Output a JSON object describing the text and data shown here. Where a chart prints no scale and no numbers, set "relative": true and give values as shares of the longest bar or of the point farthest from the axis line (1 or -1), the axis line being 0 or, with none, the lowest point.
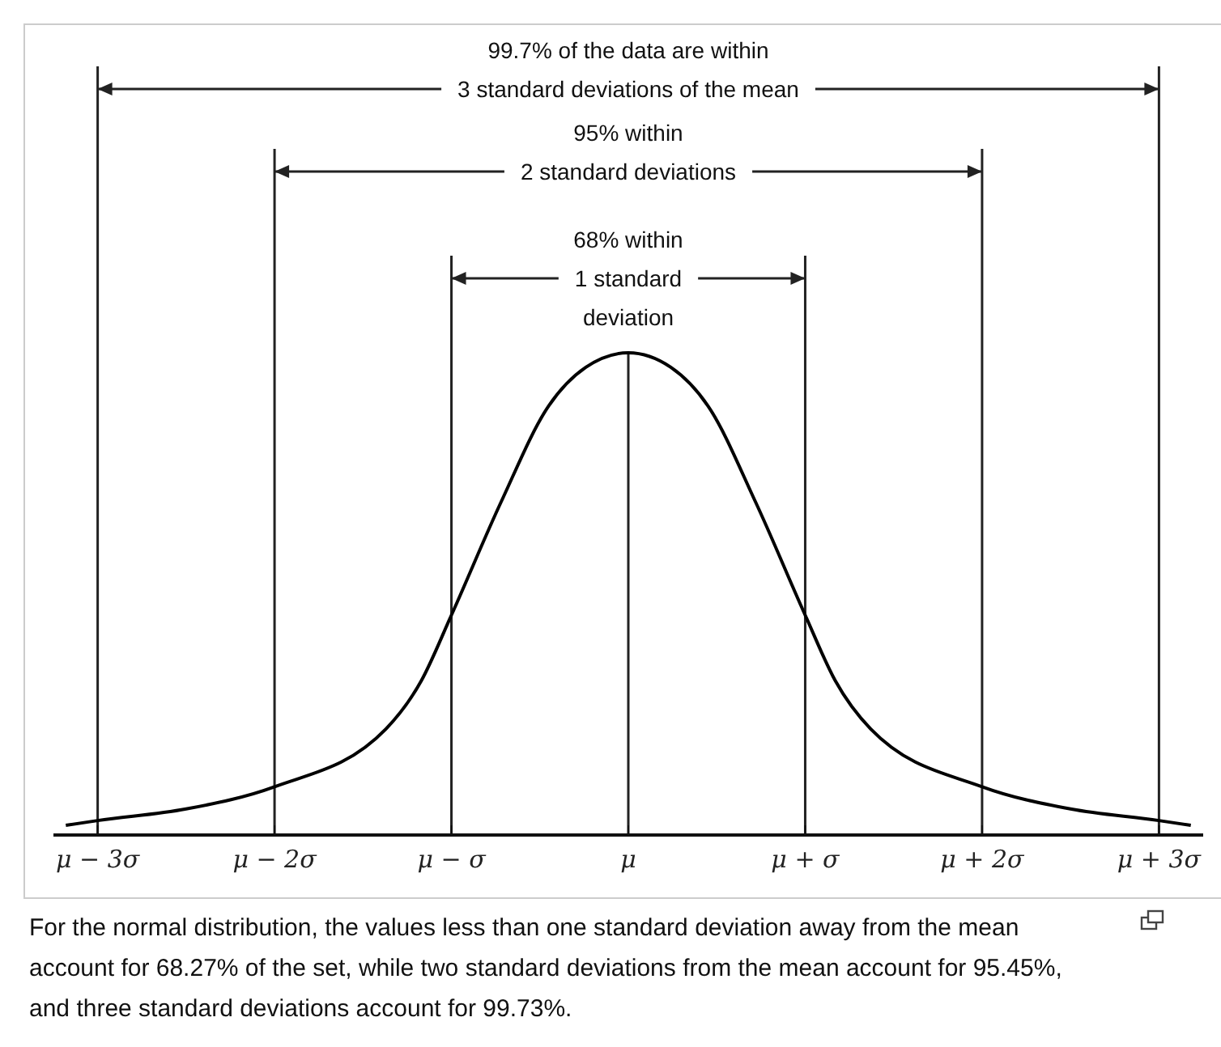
{
  "chart_data": {
    "type": "line",
    "relative": true,
    "x": [
      -3.18,
      -3,
      -2.5,
      -2,
      -1.37,
      -1.17,
      -1,
      -0.72,
      -0.45,
      -0.24,
      0,
      0.24,
      0.45,
      0.72,
      1,
      1.17,
      1.37,
      2,
      2.5,
      3,
      3.18
    ],
    "series": [
      {
        "color": "#000000",
        "values": [
          0.02,
          0.03,
          0.054,
          0.1,
          0.22,
          0.32,
          0.456,
          0.69,
          0.89,
          0.97,
          1,
          0.97,
          0.89,
          0.69,
          0.456,
          0.32,
          0.22,
          0.1,
          0.054,
          0.03,
          0.02
        ]
      }
    ],
    "xlim": [
      -3.25,
      3.25
    ],
    "xticks": [
      {
        "value": -3,
        "label": "μ − 3σ"
      },
      {
        "value": -2,
        "label": "μ − 2σ"
      },
      {
        "value": -1,
        "label": "μ − σ"
      },
      {
        "value": 0,
        "label": "μ"
      },
      {
        "value": 1,
        "label": "μ + σ"
      },
      {
        "value": 2,
        "label": "μ + 2σ"
      },
      {
        "value": 3,
        "label": "μ + 3σ"
      }
    ],
    "ref_lines": [
      {
        "axis": "x",
        "value": -3
      },
      {
        "axis": "x",
        "value": 3
      },
      {
        "axis": "x",
        "value": -2
      },
      {
        "axis": "x",
        "value": 2
      },
      {
        "axis": "x",
        "value": -1
      },
      {
        "axis": "x",
        "value": 1
      },
      {
        "axis": "x",
        "value": 0
      }
    ],
    "annotations": [
      "99.7% of the data are within\n3 standard deviations of the mean",
      "95% within\n2 standard deviations",
      "68% within\n1 standard\ndeviation",
      "For the normal distribution, the values less than one standard deviation away from the mean account for 68.27% of the set, while two standard deviations from the mean account for 95.45%, and three standard deviations account for 99.73%."
    ],
    "grid": false,
    "marker": "none",
    "line_style": "solid"
  }
}
